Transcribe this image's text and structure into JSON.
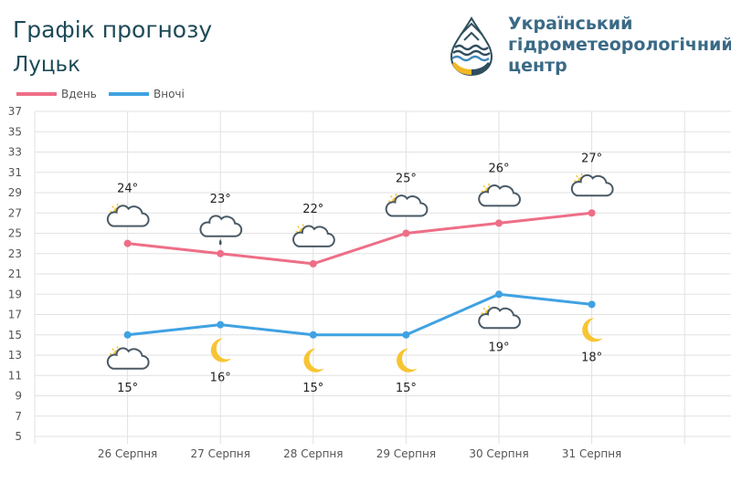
{
  "header": {
    "title": "Графік прогнозу",
    "city": "Луцьк",
    "org_lines": [
      "Український",
      "гідрометеорологічний",
      "центр"
    ]
  },
  "legend": [
    {
      "name": "Вдень",
      "color": "#ee6e87"
    },
    {
      "name": "Вночі",
      "color": "#3fa2e2"
    }
  ],
  "chart_data": {
    "type": "line",
    "categories": [
      "26 Серпня",
      "27 Серпня",
      "28 Серпня",
      "29 Серпня",
      "30 Серпня",
      "31 Серпня"
    ],
    "series": [
      {
        "name": "Вдень",
        "color": "#ee6e87",
        "values": [
          24,
          23,
          22,
          25,
          26,
          27
        ],
        "labels": [
          "24°",
          "23°",
          "22°",
          "25°",
          "26°",
          "27°"
        ],
        "icons": [
          "partly-cloudy-icon",
          "cloud-rain-icon",
          "partly-cloudy-icon",
          "partly-cloudy-icon",
          "partly-cloudy-icon",
          "partly-cloudy-icon"
        ]
      },
      {
        "name": "Вночі",
        "color": "#3fa2e2",
        "values": [
          15,
          16,
          15,
          15,
          19,
          18
        ],
        "labels": [
          "15°",
          "16°",
          "15°",
          "15°",
          "19°",
          "18°"
        ],
        "icons": [
          "partly-cloudy-icon",
          "moon-icon",
          "moon-icon",
          "moon-icon",
          "partly-cloudy-icon",
          "moon-icon"
        ]
      }
    ],
    "yticks": [
      5,
      7,
      9,
      11,
      13,
      15,
      17,
      19,
      21,
      23,
      25,
      27,
      29,
      31,
      33,
      35,
      37
    ],
    "ylim": [
      5,
      37
    ],
    "grid": true,
    "legend_position": "top-left"
  }
}
